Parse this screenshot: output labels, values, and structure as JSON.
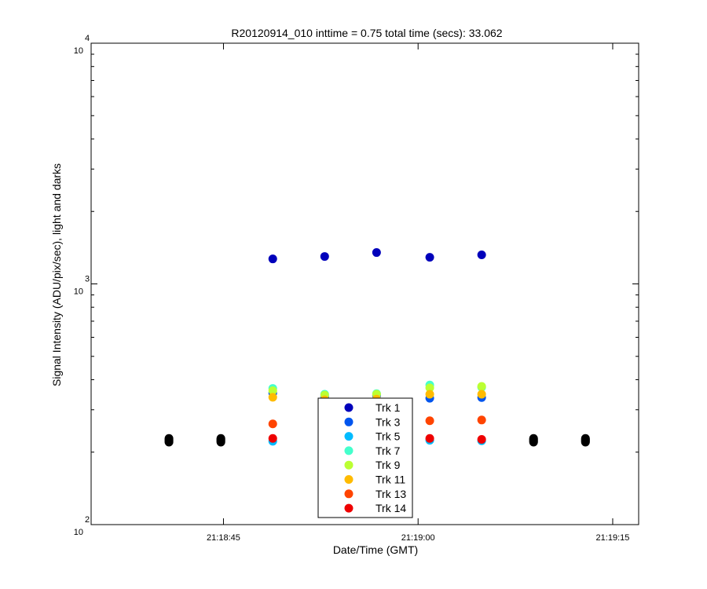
{
  "chart_data": {
    "type": "scatter",
    "title": "R20120914_010 inttime = 0.75 total time (secs): 33.062",
    "xlabel": "Date/Time (GMT)",
    "ylabel": "Signal Intensity (ADU/pix/sec), light and darks",
    "yscale": "log",
    "ylim": [
      100,
      10000
    ],
    "y_ticks": [
      {
        "value": 100,
        "base": "10",
        "exp": "2"
      },
      {
        "value": 1000,
        "base": "10",
        "exp": "3"
      },
      {
        "value": 10000,
        "base": "10",
        "exp": "4"
      }
    ],
    "xlim": [
      "21:18:34.8",
      "21:19:17.0"
    ],
    "x_ticks": [
      "21:18:45",
      "21:19:00",
      "21:19:15"
    ],
    "grid": false,
    "legend_position": "bottom-center",
    "series": [
      {
        "name": "Trk 1",
        "color": "#0000bb",
        "x": [
          "21:18:48.8",
          "21:18:52.8",
          "21:18:56.8",
          "21:19:00.9",
          "21:19:04.9"
        ],
        "values": [
          1270,
          1300,
          1350,
          1290,
          1320
        ]
      },
      {
        "name": "Trk 3",
        "color": "#0055ee",
        "x": [
          "21:18:48.8",
          "21:18:52.8",
          "21:18:56.8",
          "21:19:00.9",
          "21:19:04.9"
        ],
        "values": [
          352,
          340,
          343,
          335,
          337
        ]
      },
      {
        "name": "Trk 5",
        "color": "#00bbff",
        "x": [
          "21:18:48.8",
          "21:18:52.8",
          "21:18:56.8",
          "21:19:00.9",
          "21:19:04.9"
        ],
        "values": [
          222,
          225,
          226,
          224,
          223
        ]
      },
      {
        "name": "Trk 7",
        "color": "#44ffcc",
        "x": [
          "21:18:48.8",
          "21:18:52.8",
          "21:18:56.8",
          "21:19:00.9",
          "21:19:04.9"
        ],
        "values": [
          368,
          348,
          350,
          380,
          372
        ]
      },
      {
        "name": "Trk 9",
        "color": "#bbff33",
        "x": [
          "21:18:48.8",
          "21:18:52.8",
          "21:18:56.8",
          "21:19:00.9",
          "21:19:04.9"
        ],
        "values": [
          360,
          345,
          348,
          370,
          375
        ]
      },
      {
        "name": "Trk 11",
        "color": "#ffbb00",
        "x": [
          "21:18:48.8",
          "21:18:52.8",
          "21:18:56.8",
          "21:19:00.9",
          "21:19:04.9"
        ],
        "values": [
          338,
          330,
          332,
          348,
          348
        ]
      },
      {
        "name": "Trk 13",
        "color": "#ff4400",
        "x": [
          "21:18:48.8",
          "21:18:52.8",
          "21:18:56.8",
          "21:19:00.9",
          "21:19:04.9"
        ],
        "values": [
          262,
          265,
          266,
          270,
          272
        ]
      },
      {
        "name": "Trk 14",
        "color": "#ee0000",
        "x": [
          "21:18:48.8",
          "21:18:52.8",
          "21:18:56.8",
          "21:19:00.9",
          "21:19:04.9"
        ],
        "values": [
          228,
          229,
          228,
          228,
          226
        ]
      }
    ],
    "darks": {
      "color": "#000000",
      "x": [
        "21:18:40.8",
        "21:18:44.8",
        "21:19:08.9",
        "21:19:12.9"
      ],
      "values": [
        [
          220,
          222,
          224,
          226,
          228
        ],
        [
          220,
          222,
          224,
          226,
          228
        ],
        [
          220,
          222,
          224,
          226,
          228
        ],
        [
          220,
          222,
          224,
          226,
          228
        ]
      ]
    }
  }
}
